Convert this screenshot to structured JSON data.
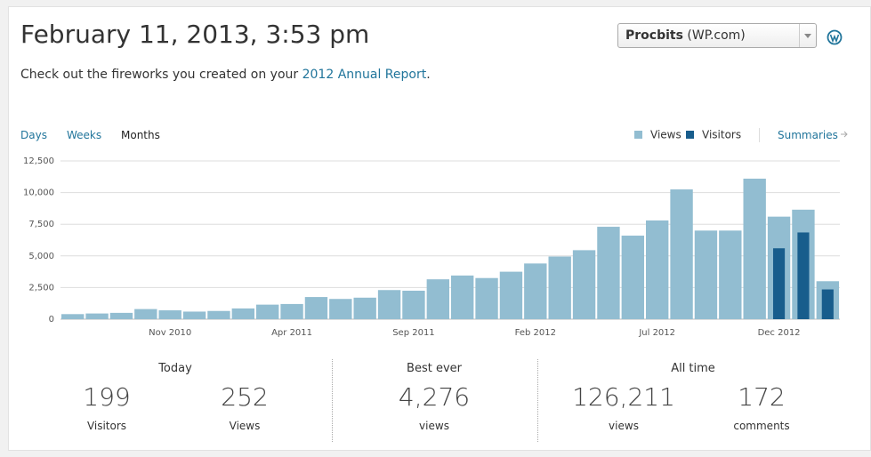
{
  "header": {
    "title": "February 11, 2013, 3:53 pm",
    "site": {
      "name": "Procbits",
      "suffix": "(WP.com)"
    },
    "message": {
      "text": "Check out the fireworks you created on your",
      "link": "2012 Annual Report",
      "end": "."
    }
  },
  "tabs": [
    "Days",
    "Weeks",
    "Months"
  ],
  "summaries": "Summaries",
  "chart_data": {
    "type": "bar",
    "categories": [
      null,
      null,
      null,
      null,
      "Nov 2010",
      null,
      null,
      null,
      null,
      "Apr 2011",
      null,
      null,
      null,
      null,
      "Sep 2011",
      null,
      null,
      null,
      null,
      "Feb 2012",
      null,
      null,
      null,
      null,
      "Jul 2012",
      null,
      null,
      null,
      null,
      "Dec 2012",
      null,
      null
    ],
    "series": [
      {
        "name": "Views",
        "color": "#92bdd1",
        "values": [
          400,
          450,
          500,
          800,
          700,
          600,
          650,
          850,
          1150,
          1200,
          1750,
          1600,
          1700,
          2300,
          2250,
          3150,
          3450,
          3250,
          3750,
          4400,
          4950,
          5450,
          7300,
          6600,
          7800,
          10250,
          7000,
          7000,
          11100,
          8100,
          8650,
          3000
        ]
      },
      {
        "name": "Visitors",
        "color": "#185d8c",
        "values": [
          null,
          null,
          null,
          null,
          null,
          null,
          null,
          null,
          null,
          null,
          null,
          null,
          null,
          null,
          null,
          null,
          null,
          null,
          null,
          null,
          null,
          null,
          null,
          null,
          null,
          null,
          null,
          null,
          null,
          5600,
          6850,
          2350
        ]
      }
    ],
    "ylim": [
      0,
      12500
    ],
    "yticks": [
      0,
      {
        "value": 2500,
        "label": "2,500"
      },
      {
        "value": 5000,
        "label": "5,000"
      },
      {
        "value": 7500,
        "label": "7,500"
      },
      {
        "value": 10000,
        "label": "10,000"
      },
      {
        "value": 12500,
        "label": "12,500"
      }
    ],
    "grid": true
  },
  "stats": [
    {
      "title": "Today",
      "items": [
        {
          "value": "199",
          "label": "Visitors"
        },
        {
          "value": "252",
          "label": "Views"
        }
      ]
    },
    {
      "title": "Best ever",
      "items": [
        {
          "value": "4,276",
          "label": "views"
        }
      ]
    },
    {
      "title": "All time",
      "items": [
        {
          "value": "126,211",
          "label": "views"
        },
        {
          "value": "172",
          "label": "comments"
        }
      ]
    }
  ]
}
